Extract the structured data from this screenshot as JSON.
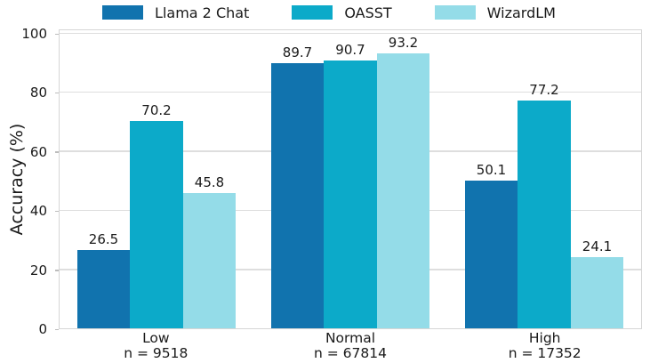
{
  "chart_data": {
    "type": "bar",
    "title": "",
    "xlabel": "",
    "ylabel": "Accuracy (%)",
    "ylim": [
      0,
      100
    ],
    "yticks": [
      0,
      20,
      40,
      60,
      80,
      100
    ],
    "grid": true,
    "legend_position": "top-center",
    "categories": [
      "Low",
      "Normal",
      "High"
    ],
    "category_sublabels": [
      "n = 9518",
      "n = 67814",
      "n = 17352"
    ],
    "series": [
      {
        "name": "Llama 2 Chat",
        "color": "#1173ae",
        "values": [
          26.5,
          89.7,
          50.1
        ]
      },
      {
        "name": "OASST",
        "color": "#0caac9",
        "values": [
          70.2,
          90.7,
          77.2
        ]
      },
      {
        "name": "WizardLM",
        "color": "#94dce8",
        "values": [
          45.8,
          93.2,
          24.1
        ]
      }
    ],
    "value_labels_shown": true
  },
  "style_colors": {
    "gridline": "#dedede",
    "plot_frame": "#d6d6d6",
    "tick_mark": "#bcbcbc",
    "text": "#1a1a1a",
    "background": "#ffffff"
  }
}
